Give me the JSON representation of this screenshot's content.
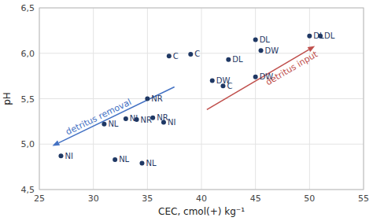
{
  "chart_data": {
    "type": "scatter",
    "x": [
      27,
      31,
      32,
      33,
      34,
      35,
      35.5,
      34.5,
      37,
      36.5,
      39,
      41,
      42.5,
      42,
      45,
      45.5,
      45,
      50,
      51
    ],
    "values": [
      4.87,
      5.22,
      4.83,
      5.28,
      5.27,
      5.5,
      5.29,
      4.79,
      5.97,
      5.24,
      5.99,
      5.7,
      5.93,
      5.64,
      6.15,
      6.03,
      5.74,
      6.19,
      6.19
    ],
    "labels": [
      "NI",
      "NL",
      "NL",
      "NI",
      "NR",
      "NR",
      "NR",
      "NL",
      "C",
      "NI",
      "C",
      "DW",
      "DL",
      "C",
      "DL",
      "DW",
      "DW",
      "DL",
      "DL"
    ],
    "color": "#1f3864",
    "marker": "circle",
    "xlim": [
      25,
      55
    ],
    "ylim": [
      4.5,
      6.5
    ],
    "xticks": [
      25,
      30,
      35,
      40,
      45,
      50,
      55
    ],
    "yticks": [
      {
        "value": 4.5,
        "label": "4,5"
      },
      {
        "value": 5.0,
        "label": "5,0"
      },
      {
        "value": 5.5,
        "label": "5,5"
      },
      {
        "value": 6.0,
        "label": "6,0"
      },
      {
        "value": 6.5,
        "label": "6,5"
      }
    ],
    "x_label": "CEC, cmol(+) kg⁻¹",
    "y_label": "pH",
    "grid": true,
    "annotations": [
      {
        "text": "detritus removal",
        "color": "#4472c4",
        "from": [
          37.5,
          5.63
        ],
        "to": [
          26.2,
          4.98
        ]
      },
      {
        "text": "detritus input",
        "color": "#c0504d",
        "from": [
          40.5,
          5.38
        ],
        "to": [
          50.5,
          6.08
        ]
      }
    ]
  }
}
